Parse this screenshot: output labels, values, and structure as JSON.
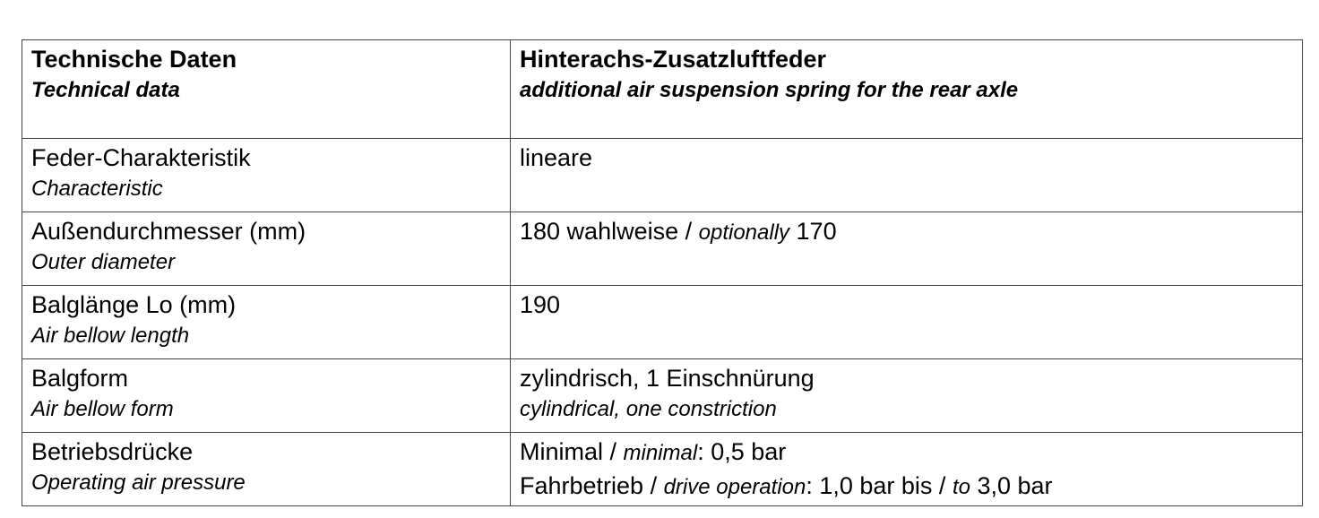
{
  "header": {
    "left_de": "Technische Daten",
    "left_en": "Technical data",
    "right_de": "Hinterachs-Zusatzluftfeder",
    "right_en": "additional air suspension spring for the rear axle"
  },
  "rows": [
    {
      "label_de": "Feder-Charakteristik",
      "label_en": "Characteristic",
      "value": "lineare"
    },
    {
      "label_de": "Außendurchmesser (mm)",
      "label_en": "Outer diameter",
      "value_a": "180 wahlweise / ",
      "value_b": "optionally",
      "value_c": " 170"
    },
    {
      "label_de": "Balglänge Lo (mm)",
      "label_en": "Air bellow length",
      "value": "190"
    },
    {
      "label_de": "Balgform",
      "label_en": "Air bellow form",
      "value_de": "zylindrisch, 1 Einschnürung",
      "value_en": "cylindrical, one constriction"
    },
    {
      "label_de": "Betriebsdrücke",
      "label_en": "Operating air pressure",
      "line1_a": "Minimal / ",
      "line1_b": "minimal",
      "line1_c": ": 0,5 bar",
      "line2_a": "Fahrbetrieb / ",
      "line2_b": "drive operation",
      "line2_c": ": 1,0 bar bis / ",
      "line2_d": "to",
      "line2_e": " 3,0 bar"
    }
  ]
}
